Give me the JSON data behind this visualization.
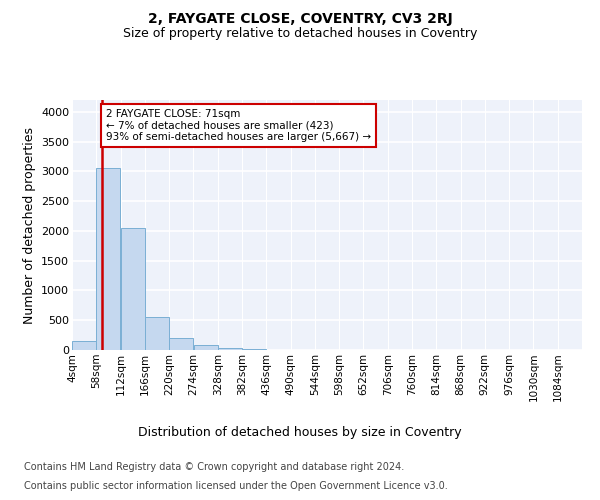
{
  "title_line1": "2, FAYGATE CLOSE, COVENTRY, CV3 2RJ",
  "title_line2": "Size of property relative to detached houses in Coventry",
  "xlabel": "Distribution of detached houses by size in Coventry",
  "ylabel": "Number of detached properties",
  "bin_starts": [
    4,
    58,
    112,
    166,
    220,
    274,
    328,
    382,
    436,
    490,
    544,
    598,
    652,
    706,
    760,
    814,
    868,
    922,
    976,
    1030
  ],
  "bin_width": 54,
  "bar_heights": [
    150,
    3050,
    2050,
    550,
    210,
    80,
    30,
    10,
    5,
    3,
    0,
    0,
    0,
    0,
    0,
    0,
    0,
    0,
    0,
    0
  ],
  "bar_color": "#c5d8ef",
  "bar_edge_color": "#7aafd4",
  "property_size": 71,
  "property_line_color": "#cc0000",
  "annotation_text": "2 FAYGATE CLOSE: 71sqm\n← 7% of detached houses are smaller (423)\n93% of semi-detached houses are larger (5,667) →",
  "annotation_box_color": "#ffffff",
  "annotation_box_edge_color": "#cc0000",
  "ylim": [
    0,
    4200
  ],
  "tick_labels": [
    "4sqm",
    "58sqm",
    "112sqm",
    "166sqm",
    "220sqm",
    "274sqm",
    "328sqm",
    "382sqm",
    "436sqm",
    "490sqm",
    "544sqm",
    "598sqm",
    "652sqm",
    "706sqm",
    "760sqm",
    "814sqm",
    "868sqm",
    "922sqm",
    "976sqm",
    "1030sqm",
    "1084sqm"
  ],
  "background_color": "#eef2fa",
  "grid_color": "#ffffff",
  "footer_line1": "Contains HM Land Registry data © Crown copyright and database right 2024.",
  "footer_line2": "Contains public sector information licensed under the Open Government Licence v3.0.",
  "title_fontsize": 10,
  "subtitle_fontsize": 9,
  "axis_label_fontsize": 9,
  "tick_fontsize": 7.5,
  "footer_fontsize": 7
}
